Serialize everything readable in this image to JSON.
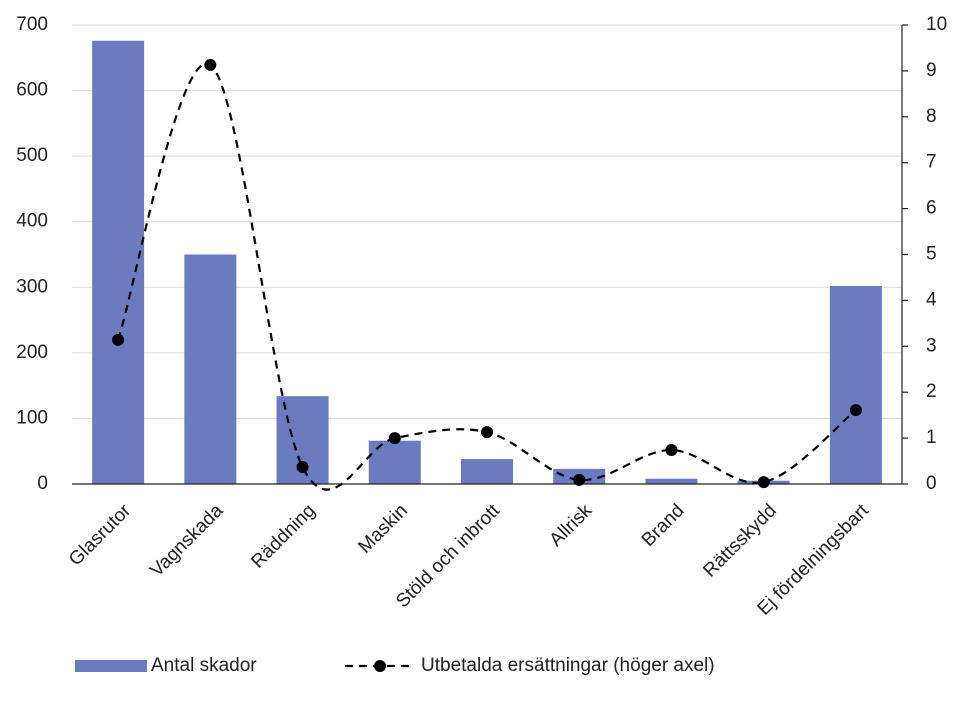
{
  "chart_data": {
    "type": "bar_line",
    "categories": [
      "Glasrutor",
      "Vagnskada",
      "Räddning",
      "Maskin",
      "Stöld och inbrott",
      "Allrisk",
      "Brand",
      "Rättsskydd",
      "Ej fördelningsbart"
    ],
    "series": [
      {
        "name": "Antal skador",
        "color": "#6a7bbf",
        "type": "bar",
        "values": [
          676,
          350,
          134,
          66,
          38,
          23,
          8,
          5,
          302
        ]
      },
      {
        "name": "Utbetalda ersättningar (höger axel)",
        "color": "#000000",
        "type": "line",
        "axis": "y2",
        "values": [
          3.14,
          9.13,
          0.37,
          1.0,
          1.13,
          0.09,
          0.74,
          0.04,
          1.61
        ]
      }
    ],
    "ylim": [
      0,
      700
    ],
    "yticks": [
      0,
      100,
      200,
      300,
      400,
      500,
      600,
      700
    ],
    "y2lim": [
      0,
      10
    ],
    "y2ticks": [
      0,
      1,
      2,
      3,
      4,
      5,
      6,
      7,
      8,
      9,
      10
    ],
    "grid": true,
    "legend": "bottom"
  }
}
